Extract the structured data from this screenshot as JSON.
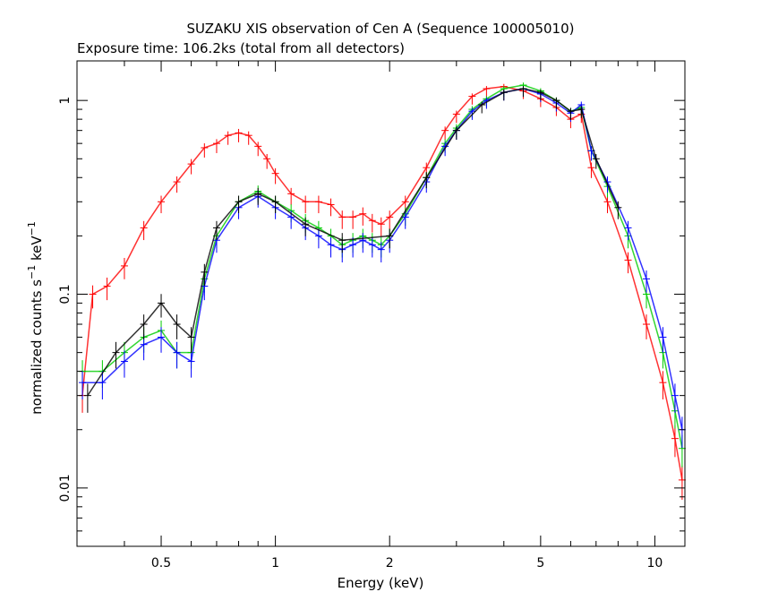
{
  "chart_data": {
    "type": "scatter",
    "title": "SUZAKU XIS observation of Cen A (Sequence 100005010)",
    "subtitle": "Exposure time: 106.2ks (total from all detectors)",
    "xlabel": "Energy (keV)",
    "ylabel": {
      "main": "normalized counts s",
      "exp1": "−1",
      "mid": " keV",
      "exp2": "−1"
    },
    "x_scale": "log",
    "y_scale": "log",
    "xlim": [
      0.3,
      12
    ],
    "ylim": [
      0.005,
      1.6
    ],
    "xticks": [
      {
        "value": 0.5,
        "label": "0.5"
      },
      {
        "value": 1,
        "label": "1"
      },
      {
        "value": 2,
        "label": "2"
      },
      {
        "value": 5,
        "label": "5"
      },
      {
        "value": 10,
        "label": "10"
      }
    ],
    "yticks": [
      {
        "value": 0.01,
        "label": "0.01"
      },
      {
        "value": 0.1,
        "label": "0.1"
      },
      {
        "value": 1,
        "label": "1"
      }
    ],
    "series": [
      {
        "color": "#ff0000",
        "x": [
          0.31,
          0.33,
          0.36,
          0.4,
          0.45,
          0.5,
          0.55,
          0.6,
          0.65,
          0.7,
          0.75,
          0.8,
          0.85,
          0.9,
          0.95,
          1.0,
          1.1,
          1.2,
          1.3,
          1.4,
          1.5,
          1.6,
          1.7,
          1.8,
          1.9,
          2.0,
          2.2,
          2.5,
          2.8,
          3.0,
          3.3,
          3.6,
          4.0,
          4.5,
          5.0,
          5.5,
          6.0,
          6.4,
          6.8,
          7.5,
          8.5,
          9.5,
          10.5,
          11.3,
          11.8
        ],
        "y": [
          0.03,
          0.1,
          0.11,
          0.14,
          0.22,
          0.3,
          0.38,
          0.47,
          0.57,
          0.6,
          0.66,
          0.68,
          0.66,
          0.58,
          0.5,
          0.42,
          0.33,
          0.3,
          0.3,
          0.29,
          0.25,
          0.25,
          0.26,
          0.24,
          0.23,
          0.25,
          0.3,
          0.45,
          0.7,
          0.85,
          1.05,
          1.15,
          1.18,
          1.12,
          1.02,
          0.92,
          0.8,
          0.85,
          0.45,
          0.3,
          0.15,
          0.07,
          0.035,
          0.018,
          0.011
        ]
      },
      {
        "color": "#00cc00",
        "x": [
          0.31,
          0.35,
          0.4,
          0.45,
          0.5,
          0.55,
          0.6,
          0.65,
          0.7,
          0.8,
          0.9,
          1.0,
          1.1,
          1.2,
          1.3,
          1.4,
          1.5,
          1.6,
          1.7,
          1.8,
          1.9,
          2.0,
          2.2,
          2.5,
          2.8,
          3.0,
          3.3,
          3.6,
          4.0,
          4.5,
          5.0,
          5.5,
          6.0,
          6.4,
          6.8,
          7.5,
          8.5,
          9.5,
          10.5,
          11.3,
          11.8
        ],
        "y": [
          0.04,
          0.04,
          0.05,
          0.06,
          0.065,
          0.05,
          0.05,
          0.12,
          0.2,
          0.3,
          0.34,
          0.3,
          0.27,
          0.24,
          0.22,
          0.2,
          0.18,
          0.19,
          0.2,
          0.19,
          0.18,
          0.2,
          0.26,
          0.4,
          0.6,
          0.72,
          0.9,
          1.02,
          1.15,
          1.2,
          1.12,
          1.0,
          0.88,
          0.92,
          0.55,
          0.36,
          0.2,
          0.1,
          0.05,
          0.025,
          0.016
        ]
      },
      {
        "color": "#0000ff",
        "x": [
          0.31,
          0.35,
          0.4,
          0.45,
          0.5,
          0.55,
          0.6,
          0.65,
          0.7,
          0.8,
          0.9,
          1.0,
          1.1,
          1.2,
          1.3,
          1.4,
          1.5,
          1.6,
          1.7,
          1.8,
          1.9,
          2.0,
          2.2,
          2.5,
          2.8,
          3.0,
          3.3,
          3.6,
          4.0,
          4.5,
          5.0,
          5.5,
          6.0,
          6.4,
          6.8,
          7.5,
          8.5,
          9.5,
          10.5,
          11.3,
          11.8
        ],
        "y": [
          0.035,
          0.035,
          0.045,
          0.055,
          0.06,
          0.05,
          0.045,
          0.11,
          0.19,
          0.28,
          0.32,
          0.28,
          0.25,
          0.22,
          0.2,
          0.18,
          0.17,
          0.18,
          0.19,
          0.18,
          0.17,
          0.19,
          0.25,
          0.38,
          0.58,
          0.7,
          0.88,
          1.0,
          1.1,
          1.15,
          1.08,
          0.97,
          0.86,
          0.95,
          0.55,
          0.38,
          0.22,
          0.12,
          0.06,
          0.03,
          0.02
        ]
      },
      {
        "color": "#000000",
        "x": [
          0.32,
          0.38,
          0.45,
          0.5,
          0.55,
          0.6,
          0.65,
          0.7,
          0.8,
          0.9,
          1.0,
          1.2,
          1.5,
          2.0,
          2.5,
          3.0,
          3.5,
          4.0,
          4.5,
          5.0,
          5.5,
          6.0,
          6.4,
          7.0,
          8.0
        ],
        "y": [
          0.03,
          0.05,
          0.07,
          0.09,
          0.07,
          0.06,
          0.13,
          0.22,
          0.3,
          0.33,
          0.3,
          0.23,
          0.19,
          0.2,
          0.4,
          0.7,
          0.95,
          1.1,
          1.15,
          1.1,
          1.0,
          0.88,
          0.9,
          0.5,
          0.28
        ]
      }
    ]
  }
}
